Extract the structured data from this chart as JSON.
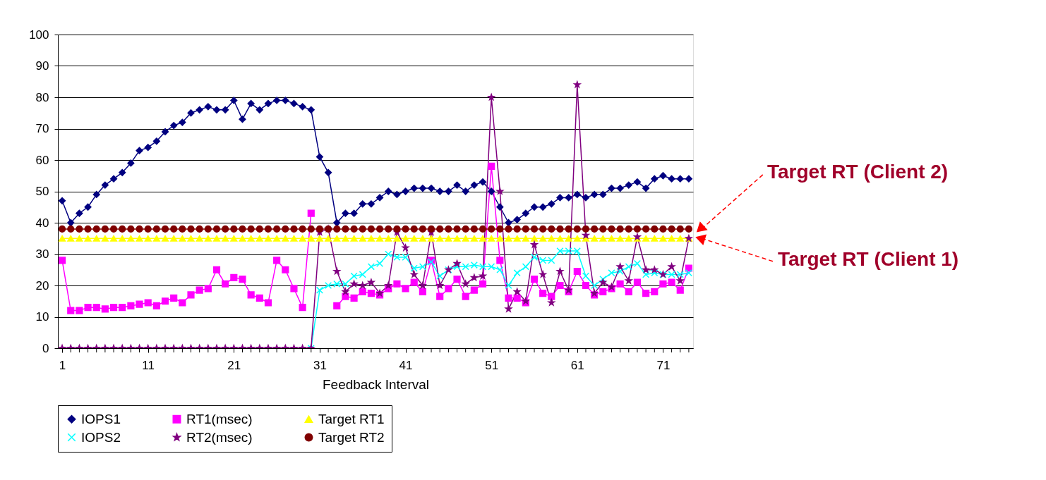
{
  "chart_data": {
    "type": "line",
    "xlabel": "Feedback Interval",
    "categories": [
      "1",
      null,
      null,
      null,
      null,
      null,
      null,
      null,
      null,
      null,
      "11",
      null,
      null,
      null,
      null,
      null,
      null,
      null,
      null,
      null,
      "21",
      null,
      null,
      null,
      null,
      null,
      null,
      null,
      null,
      null,
      "31",
      null,
      null,
      null,
      null,
      null,
      null,
      null,
      null,
      null,
      "41",
      null,
      null,
      null,
      null,
      null,
      null,
      null,
      null,
      null,
      "51",
      null,
      null,
      null,
      null,
      null,
      null,
      null,
      null,
      null,
      "61",
      null,
      null,
      null,
      null,
      null,
      null,
      null,
      null,
      null,
      "71",
      null,
      null,
      null
    ],
    "series": [
      {
        "name": "IOPS1",
        "color": "#000080",
        "marker": "diamond",
        "values": [
          47,
          40,
          43,
          45,
          49,
          52,
          54,
          56,
          59,
          63,
          64,
          66,
          69,
          71,
          72,
          75,
          76,
          77,
          76,
          76,
          79,
          73,
          78,
          76,
          78,
          79,
          79,
          78,
          77,
          76,
          61,
          56,
          40,
          43,
          43,
          46,
          46,
          48,
          50,
          49,
          50,
          51,
          51,
          51,
          50,
          50,
          52,
          50,
          52,
          53,
          50,
          45,
          40,
          41,
          43,
          45,
          45,
          46,
          48,
          48,
          49,
          48,
          49,
          49,
          51,
          51,
          52,
          53,
          51,
          54,
          55,
          54,
          54,
          54
        ]
      },
      {
        "name": "RT1(msec)",
        "color": "#ff00ff",
        "marker": "square",
        "values": [
          28,
          12,
          12,
          13,
          13,
          12.5,
          13,
          13,
          13.5,
          14,
          14.5,
          13.5,
          15,
          16,
          14.5,
          17,
          18.5,
          19,
          25,
          20.5,
          22.5,
          22,
          17,
          16,
          14.5,
          28,
          25,
          19,
          13,
          43,
          null,
          null,
          13.5,
          16.5,
          16,
          18,
          17.5,
          17,
          19,
          20.5,
          19,
          21,
          18,
          28,
          16.5,
          19,
          22,
          16.5,
          18.5,
          20.5,
          58,
          28,
          16,
          16,
          14.5,
          22,
          17.5,
          16.5,
          20,
          18,
          24.5,
          20,
          17,
          18,
          19,
          20.5,
          18,
          21,
          17.5,
          18,
          20.5,
          21,
          18.5,
          25.5
        ]
      },
      {
        "name": "Target RT1",
        "color": "#ffff00",
        "marker": "triangle",
        "values": [
          35,
          35,
          35,
          35,
          35,
          35,
          35,
          35,
          35,
          35,
          35,
          35,
          35,
          35,
          35,
          35,
          35,
          35,
          35,
          35,
          35,
          35,
          35,
          35,
          35,
          35,
          35,
          35,
          35,
          35,
          35,
          35,
          35,
          35,
          35,
          35,
          35,
          35,
          35,
          35,
          35,
          35,
          35,
          35,
          35,
          35,
          35,
          35,
          35,
          35,
          35,
          35,
          35,
          35,
          35,
          35,
          35,
          35,
          35,
          35,
          35,
          35,
          35,
          35,
          35,
          35,
          35,
          35,
          35,
          35,
          35,
          35,
          35,
          35
        ]
      },
      {
        "name": "IOPS2",
        "color": "#00ffff",
        "marker": "cross",
        "values": [
          null,
          null,
          null,
          null,
          null,
          null,
          null,
          null,
          null,
          null,
          null,
          null,
          null,
          null,
          null,
          null,
          null,
          null,
          null,
          null,
          null,
          null,
          null,
          null,
          null,
          null,
          null,
          null,
          null,
          0,
          18.5,
          20,
          20.5,
          20.5,
          23,
          23.5,
          26,
          27,
          30,
          29,
          29,
          25.5,
          26,
          27.5,
          23,
          25,
          26,
          26,
          26.5,
          26,
          26,
          25,
          20,
          24,
          26,
          29,
          28,
          28,
          31,
          31,
          31,
          23,
          20,
          22,
          24,
          24.5,
          26,
          27,
          23.5,
          24,
          23.5,
          23.5,
          23.5,
          24
        ]
      },
      {
        "name": "RT2(msec)",
        "color": "#800080",
        "marker": "star",
        "values": [
          0,
          0,
          0,
          0,
          0,
          0,
          0,
          0,
          0,
          0,
          0,
          0,
          0,
          0,
          0,
          0,
          0,
          0,
          0,
          0,
          0,
          0,
          0,
          0,
          0,
          0,
          0,
          0,
          0,
          0,
          37,
          38,
          24.5,
          18,
          20.5,
          20,
          21,
          17.5,
          20,
          37,
          32,
          23.5,
          20,
          37,
          20,
          25,
          27,
          20.5,
          22.5,
          23,
          80,
          50,
          12.5,
          18,
          15,
          33,
          23.5,
          14.5,
          24.5,
          18.5,
          84,
          36,
          17.5,
          21,
          19.5,
          26,
          21.5,
          35.5,
          25,
          25,
          23.5,
          26,
          21.5,
          35
        ]
      },
      {
        "name": "Target RT2",
        "color": "#800000",
        "marker": "circle",
        "values": [
          38,
          38,
          38,
          38,
          38,
          38,
          38,
          38,
          38,
          38,
          38,
          38,
          38,
          38,
          38,
          38,
          38,
          38,
          38,
          38,
          38,
          38,
          38,
          38,
          38,
          38,
          38,
          38,
          38,
          38,
          38,
          38,
          38,
          38,
          38,
          38,
          38,
          38,
          38,
          38,
          38,
          38,
          38,
          38,
          38,
          38,
          38,
          38,
          38,
          38,
          38,
          38,
          38,
          38,
          38,
          38,
          38,
          38,
          38,
          38,
          38,
          38,
          38,
          38,
          38,
          38,
          38,
          38,
          38,
          38,
          38,
          38,
          38,
          38
        ]
      }
    ],
    "ylim": [
      0,
      100
    ],
    "yticks": [
      0,
      10,
      20,
      30,
      40,
      50,
      60,
      70,
      80,
      90,
      100
    ],
    "grid": "y",
    "legend": "bottom",
    "annotations": [
      "Target RT (Client 2)",
      "Target RT (Client 1)"
    ]
  }
}
